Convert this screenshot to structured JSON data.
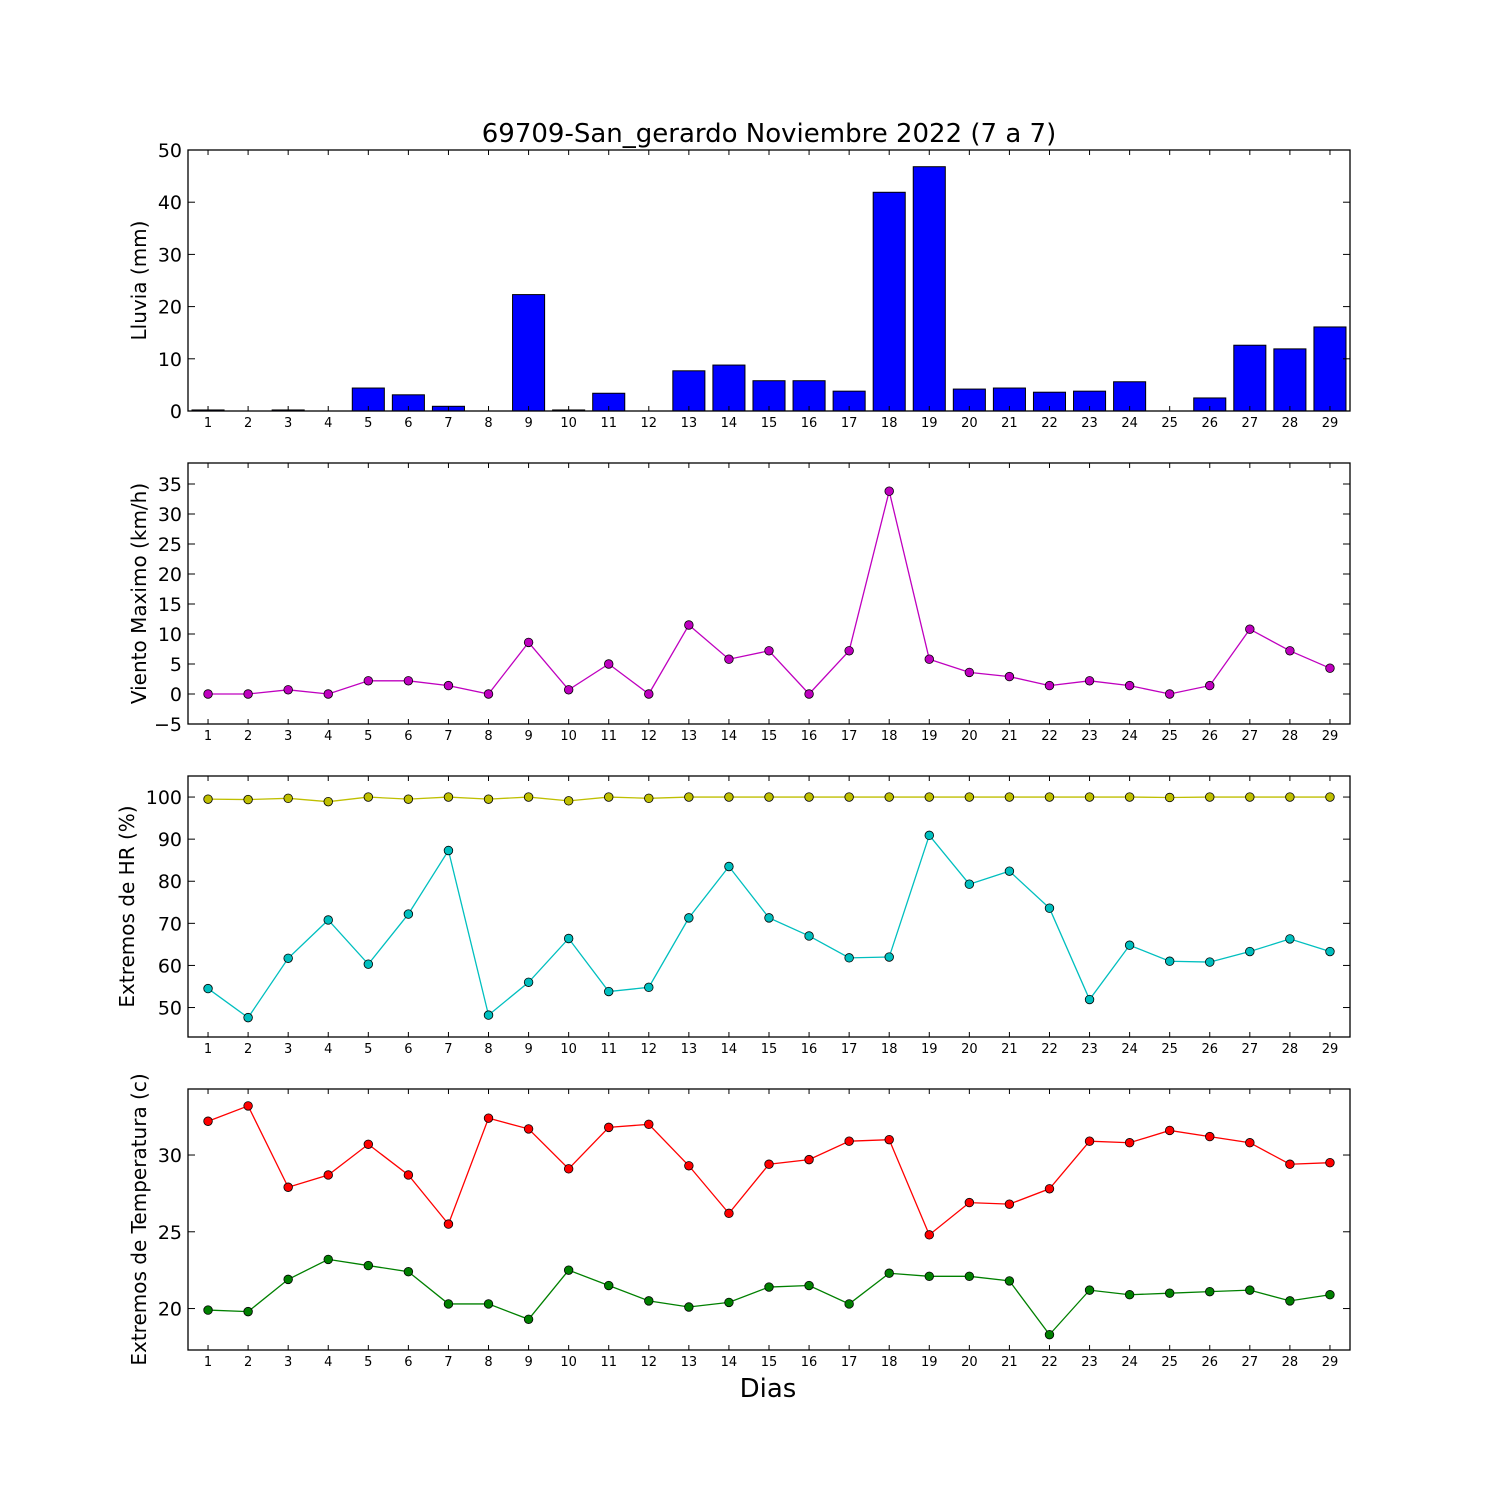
{
  "title": "69709-San_gerardo Noviembre 2022  (7 a 7)",
  "xlabel": "Dias",
  "chart_data": [
    {
      "type": "bar",
      "ylabel": "Lluvia (mm)",
      "ylim": [
        0,
        50
      ],
      "yticks": [
        0,
        10,
        20,
        30,
        40,
        50
      ],
      "categories": [
        1,
        2,
        3,
        4,
        5,
        6,
        7,
        8,
        9,
        10,
        11,
        12,
        13,
        14,
        15,
        16,
        17,
        18,
        19,
        20,
        21,
        22,
        23,
        24,
        25,
        26,
        27,
        28,
        29
      ],
      "series": [
        {
          "color": "#0000ff",
          "values": [
            0.2,
            0,
            0.2,
            0,
            4.4,
            3.1,
            0.9,
            0,
            22.3,
            0.2,
            3.4,
            0,
            7.7,
            8.8,
            5.8,
            5.8,
            3.8,
            41.9,
            46.8,
            4.2,
            4.4,
            3.6,
            3.8,
            5.6,
            0,
            2.5,
            12.6,
            11.9,
            16.1
          ]
        }
      ]
    },
    {
      "type": "line",
      "ylabel": "Viento Maximo (km/h)",
      "ylim": [
        -5,
        38.5
      ],
      "yticks": [
        -5,
        0,
        5,
        10,
        15,
        20,
        25,
        30,
        35
      ],
      "categories": [
        1,
        2,
        3,
        4,
        5,
        6,
        7,
        8,
        9,
        10,
        11,
        12,
        13,
        14,
        15,
        16,
        17,
        18,
        19,
        20,
        21,
        22,
        23,
        24,
        25,
        26,
        27,
        28,
        29
      ],
      "series": [
        {
          "color": "#bf00bf",
          "values": [
            0,
            0,
            0.7,
            0,
            2.2,
            2.2,
            1.4,
            0,
            8.6,
            0.7,
            5,
            0,
            11.5,
            5.8,
            7.2,
            0,
            7.2,
            33.8,
            5.8,
            3.6,
            2.9,
            1.4,
            2.2,
            1.4,
            0,
            1.4,
            10.8,
            7.2,
            4.3
          ]
        }
      ]
    },
    {
      "type": "line",
      "ylabel": "Extremos de HR (%)",
      "ylim": [
        43,
        105
      ],
      "yticks": [
        50,
        60,
        70,
        80,
        90,
        100
      ],
      "categories": [
        1,
        2,
        3,
        4,
        5,
        6,
        7,
        8,
        9,
        10,
        11,
        12,
        13,
        14,
        15,
        16,
        17,
        18,
        19,
        20,
        21,
        22,
        23,
        24,
        25,
        26,
        27,
        28,
        29
      ],
      "series": [
        {
          "color": "#bfbf00",
          "values": [
            99.5,
            99.4,
            99.7,
            98.9,
            100,
            99.5,
            100,
            99.5,
            100,
            99.1,
            100,
            99.7,
            100,
            100,
            100,
            100,
            100,
            100,
            100,
            100,
            100,
            100,
            100,
            100,
            99.9,
            100,
            100,
            100,
            100
          ]
        },
        {
          "color": "#00bfbf",
          "values": [
            54.5,
            47.6,
            61.7,
            70.8,
            60.3,
            72.2,
            87.3,
            48.2,
            56,
            66.4,
            53.8,
            54.8,
            71.3,
            83.5,
            71.3,
            67,
            61.8,
            62,
            90.9,
            79.3,
            82.4,
            73.6,
            51.9,
            64.8,
            61,
            60.8,
            63.3,
            66.3,
            63.3
          ]
        }
      ]
    },
    {
      "type": "line",
      "ylabel": "Extremos de Temperatura (c)",
      "ylim": [
        17.3,
        34.3
      ],
      "yticks": [
        20,
        25,
        30
      ],
      "categories": [
        1,
        2,
        3,
        4,
        5,
        6,
        7,
        8,
        9,
        10,
        11,
        12,
        13,
        14,
        15,
        16,
        17,
        18,
        19,
        20,
        21,
        22,
        23,
        24,
        25,
        26,
        27,
        28,
        29
      ],
      "series": [
        {
          "color": "#ff0000",
          "values": [
            32.2,
            33.2,
            27.9,
            28.7,
            30.7,
            28.7,
            25.5,
            32.4,
            31.7,
            29.1,
            31.8,
            32,
            29.3,
            26.2,
            29.4,
            29.7,
            30.9,
            31,
            24.8,
            26.9,
            26.8,
            27.8,
            30.9,
            30.8,
            31.6,
            31.2,
            30.8,
            29.4,
            29.5
          ]
        },
        {
          "color": "#008000",
          "values": [
            19.9,
            19.8,
            21.9,
            23.2,
            22.8,
            22.4,
            20.3,
            20.3,
            19.3,
            22.5,
            21.5,
            20.5,
            20.1,
            20.4,
            21.4,
            21.5,
            20.3,
            22.3,
            22.1,
            22.1,
            21.8,
            18.3,
            21.2,
            20.9,
            21,
            21.1,
            21.2,
            20.5,
            20.9
          ]
        }
      ]
    }
  ]
}
